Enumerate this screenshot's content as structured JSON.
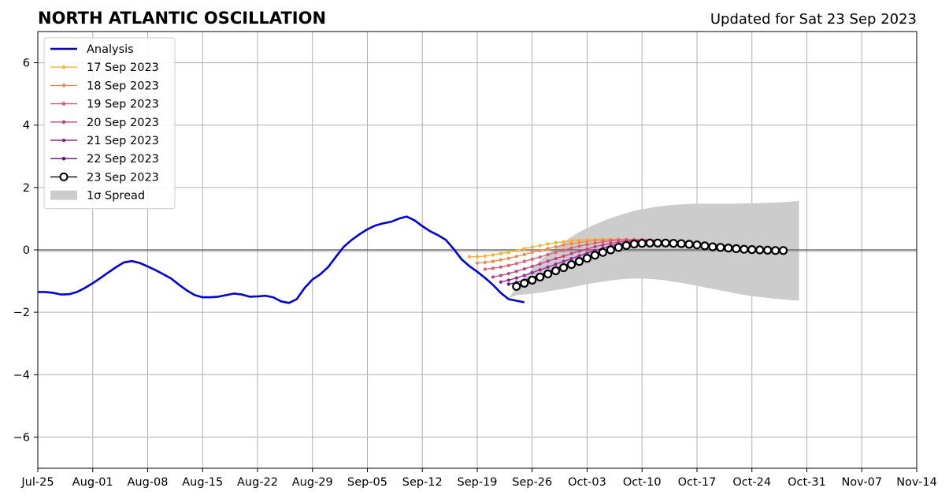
{
  "chart_data": {
    "type": "line",
    "title": "NORTH ATLANTIC OSCILLATION",
    "subtitle": "Updated for Sat 23 Sep 2023",
    "xlabel": "",
    "ylabel": "",
    "x_range": [
      "2023-07-25",
      "2023-11-14"
    ],
    "ylim": [
      -7,
      7
    ],
    "y_ticks": [
      {
        "value": 6,
        "label": "6"
      },
      {
        "value": 4,
        "label": "4"
      },
      {
        "value": 2,
        "label": "2"
      },
      {
        "value": 0,
        "label": "0"
      },
      {
        "value": -2,
        "label": "−2"
      },
      {
        "value": -4,
        "label": "−4"
      },
      {
        "value": -6,
        "label": "−6"
      }
    ],
    "x_ticks": [
      {
        "date": "2023-07-25",
        "label": "Jul-25"
      },
      {
        "date": "2023-08-01",
        "label": "Aug-01"
      },
      {
        "date": "2023-08-08",
        "label": "Aug-08"
      },
      {
        "date": "2023-08-15",
        "label": "Aug-15"
      },
      {
        "date": "2023-08-22",
        "label": "Aug-22"
      },
      {
        "date": "2023-08-29",
        "label": "Aug-29"
      },
      {
        "date": "2023-09-05",
        "label": "Sep-05"
      },
      {
        "date": "2023-09-12",
        "label": "Sep-12"
      },
      {
        "date": "2023-09-19",
        "label": "Sep-19"
      },
      {
        "date": "2023-09-26",
        "label": "Sep-26"
      },
      {
        "date": "2023-10-03",
        "label": "Oct-03"
      },
      {
        "date": "2023-10-10",
        "label": "Oct-10"
      },
      {
        "date": "2023-10-17",
        "label": "Oct-17"
      },
      {
        "date": "2023-10-24",
        "label": "Oct-24"
      },
      {
        "date": "2023-10-31",
        "label": "Oct-31"
      },
      {
        "date": "2023-11-07",
        "label": "Nov-07"
      },
      {
        "date": "2023-11-14",
        "label": "Nov-14"
      }
    ],
    "grid": true,
    "legend_position": "top-left",
    "analysis": {
      "name": "Analysis",
      "color": "#0000ee",
      "start_date": "2023-07-25",
      "values": [
        -1.35,
        -1.35,
        -1.38,
        -1.43,
        -1.42,
        -1.35,
        -1.22,
        -1.07,
        -0.9,
        -0.72,
        -0.55,
        -0.4,
        -0.36,
        -0.42,
        -0.53,
        -0.65,
        -0.78,
        -0.92,
        -1.12,
        -1.3,
        -1.45,
        -1.52,
        -1.52,
        -1.5,
        -1.45,
        -1.4,
        -1.43,
        -1.5,
        -1.49,
        -1.47,
        -1.52,
        -1.65,
        -1.7,
        -1.58,
        -1.22,
        -0.95,
        -0.78,
        -0.55,
        -0.22,
        0.1,
        0.32,
        0.5,
        0.66,
        0.78,
        0.85,
        0.9,
        1.0,
        1.07,
        0.95,
        0.76,
        0.6,
        0.47,
        0.32,
        0.03,
        -0.3,
        -0.52,
        -0.7,
        -0.9,
        -1.12,
        -1.38,
        -1.58,
        -1.63,
        -1.68
      ]
    },
    "forecasts": [
      {
        "name": "17 Sep 2023",
        "color": "#f6b32b",
        "start_date": "2023-09-18",
        "values": [
          -0.22,
          -0.22,
          -0.2,
          -0.16,
          -0.12,
          -0.08,
          -0.02,
          0.04,
          0.09,
          0.14,
          0.19,
          0.23,
          0.26,
          0.29,
          0.31,
          0.33,
          0.34,
          0.34,
          0.34,
          0.33,
          0.32,
          0.3,
          0.28,
          0.25,
          0.22
        ]
      },
      {
        "name": "18 Sep 2023",
        "color": "#ef8a48",
        "start_date": "2023-09-19",
        "values": [
          -0.42,
          -0.4,
          -0.37,
          -0.32,
          -0.27,
          -0.21,
          -0.15,
          -0.08,
          -0.02,
          0.04,
          0.1,
          0.15,
          0.2,
          0.24,
          0.27,
          0.3,
          0.32,
          0.33,
          0.34,
          0.34,
          0.33,
          0.32,
          0.3,
          0.28
        ]
      },
      {
        "name": "19 Sep 2023",
        "color": "#dd5e6f",
        "start_date": "2023-09-20",
        "values": [
          -0.62,
          -0.59,
          -0.55,
          -0.5,
          -0.44,
          -0.37,
          -0.3,
          -0.23,
          -0.15,
          -0.08,
          -0.01,
          0.06,
          0.12,
          0.17,
          0.22,
          0.26,
          0.29,
          0.31,
          0.32,
          0.33,
          0.33,
          0.32,
          0.31
        ]
      },
      {
        "name": "20 Sep 2023",
        "color": "#c43f86",
        "start_date": "2023-09-21",
        "values": [
          -0.87,
          -0.82,
          -0.76,
          -0.69,
          -0.61,
          -0.53,
          -0.45,
          -0.36,
          -0.28,
          -0.2,
          -0.12,
          -0.04,
          0.03,
          0.1,
          0.16,
          0.21,
          0.25,
          0.28,
          0.3,
          0.31,
          0.31,
          0.3
        ]
      },
      {
        "name": "21 Sep 2023",
        "color": "#9a1f9a",
        "start_date": "2023-09-22",
        "values": [
          -1.03,
          -0.97,
          -0.9,
          -0.82,
          -0.73,
          -0.64,
          -0.55,
          -0.46,
          -0.37,
          -0.28,
          -0.19,
          -0.1,
          -0.02,
          0.06,
          0.13,
          0.19,
          0.24,
          0.27,
          0.29,
          0.3,
          0.3
        ]
      },
      {
        "name": "22 Sep 2023",
        "color": "#5a108f",
        "start_date": "2023-09-23",
        "values": [
          -1.1,
          -1.04,
          -0.97,
          -0.89,
          -0.8,
          -0.71,
          -0.61,
          -0.51,
          -0.42,
          -0.32,
          -0.23,
          -0.14,
          -0.05,
          0.03,
          0.11,
          0.17,
          0.22,
          0.26,
          0.28,
          0.29
        ]
      },
      {
        "name": "23 Sep 2023",
        "color": "#000000",
        "start_date": "2023-09-24",
        "values": [
          -1.17,
          -1.07,
          -0.97,
          -0.87,
          -0.77,
          -0.67,
          -0.57,
          -0.47,
          -0.37,
          -0.27,
          -0.17,
          -0.08,
          0.0,
          0.08,
          0.14,
          0.19,
          0.21,
          0.22,
          0.22,
          0.22,
          0.21,
          0.2,
          0.18,
          0.16,
          0.13,
          0.1,
          0.08,
          0.06,
          0.04,
          0.02,
          0.01,
          0.0,
          -0.01,
          -0.02,
          -0.02
        ]
      }
    ],
    "spread": {
      "name": "1σ Spread",
      "color": "#cccccc",
      "start_date": "2023-09-23",
      "upper": [
        -1.55,
        -1.2,
        -0.9,
        -0.6,
        -0.35,
        -0.13,
        0.07,
        0.25,
        0.42,
        0.57,
        0.7,
        0.82,
        0.92,
        1.02,
        1.1,
        1.18,
        1.25,
        1.3,
        1.35,
        1.39,
        1.42,
        1.44,
        1.46,
        1.47,
        1.48,
        1.48,
        1.48,
        1.48,
        1.48,
        1.48,
        1.49,
        1.49,
        1.5,
        1.51,
        1.52,
        1.53,
        1.55,
        1.57
      ],
      "lower": [
        -1.55,
        -1.45,
        -1.43,
        -1.4,
        -1.37,
        -1.33,
        -1.29,
        -1.25,
        -1.2,
        -1.15,
        -1.1,
        -1.06,
        -1.02,
        -0.98,
        -0.95,
        -0.93,
        -0.92,
        -0.92,
        -0.93,
        -0.95,
        -0.98,
        -1.02,
        -1.06,
        -1.1,
        -1.15,
        -1.2,
        -1.25,
        -1.3,
        -1.35,
        -1.4,
        -1.44,
        -1.48,
        -1.51,
        -1.54,
        -1.57,
        -1.59,
        -1.61,
        -1.62
      ]
    }
  }
}
